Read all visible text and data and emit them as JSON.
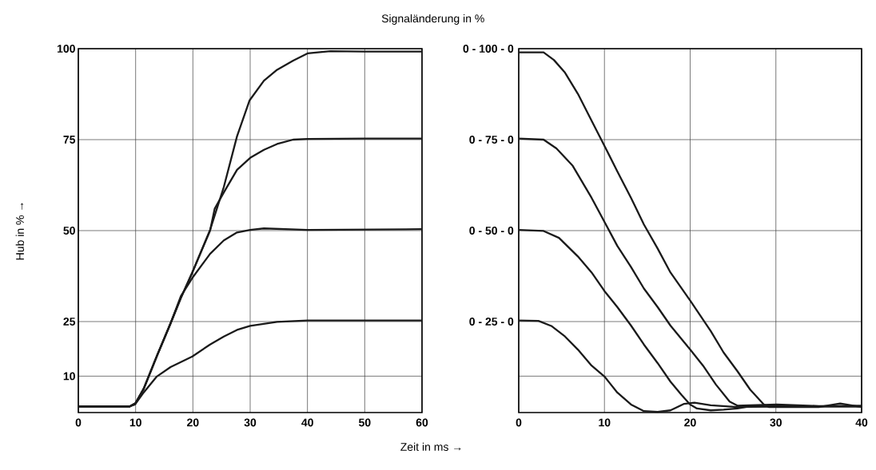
{
  "chart_data": [
    {
      "type": "line",
      "ylabel": "Hub in % →",
      "xlabel": "Zeit in ms →",
      "xlim": [
        0,
        60
      ],
      "ylim": [
        0,
        100
      ],
      "xticks": [
        0,
        10,
        20,
        30,
        40,
        50,
        60
      ],
      "yticks": [
        10,
        25,
        50,
        75,
        100
      ],
      "grid": true,
      "series": [
        {
          "color": "#1a1a1a",
          "x": [
            0,
            5,
            9,
            10,
            11.4,
            13.7,
            16.1,
            17.9,
            19.9,
            23,
            25.4,
            27.7,
            29.9,
            32.4,
            34.7,
            37.5,
            40,
            44,
            50,
            60
          ],
          "values": [
            1.7,
            1.7,
            1.7,
            2.6,
            6.5,
            15.5,
            24.5,
            31.5,
            38.5,
            50.2,
            62,
            75.9,
            85.8,
            91.2,
            94.2,
            96.7,
            98.7,
            99.3,
            99.2,
            99.2
          ]
        },
        {
          "color": "#1a1a1a",
          "x": [
            0,
            5,
            9,
            10,
            11.4,
            13.7,
            16.1,
            17.9,
            19.9,
            23,
            23.8,
            25.4,
            27.7,
            30,
            32.4,
            34.7,
            37.5,
            40,
            50,
            60
          ],
          "values": [
            1.7,
            1.7,
            1.7,
            2.6,
            6.5,
            15.5,
            24.5,
            31.5,
            38.5,
            50,
            56,
            60.5,
            66.7,
            70,
            72.2,
            73.8,
            75,
            75.2,
            75.3,
            75.3
          ]
        },
        {
          "color": "#1a1a1a",
          "x": [
            0,
            5,
            9,
            10,
            11.4,
            13.7,
            16.1,
            17.9,
            19.9,
            23,
            25.4,
            27.7,
            30,
            32.4,
            40,
            50,
            60
          ],
          "values": [
            1.7,
            1.7,
            1.7,
            2.6,
            6.5,
            15.5,
            24.5,
            32,
            37,
            43.6,
            47.3,
            49.5,
            50.2,
            50.6,
            50.2,
            50.3,
            50.4
          ]
        },
        {
          "color": "#1a1a1a",
          "x": [
            0,
            5,
            9,
            9.9,
            11.4,
            13.7,
            16.1,
            19.9,
            23,
            25.4,
            27.7,
            30,
            34.7,
            40,
            50,
            60
          ],
          "values": [
            1.7,
            1.7,
            1.7,
            2.2,
            5.5,
            9.9,
            12.5,
            15.4,
            18.7,
            20.9,
            22.7,
            23.8,
            24.9,
            25.3,
            25.3,
            25.3
          ]
        }
      ]
    },
    {
      "type": "line",
      "title": "Signaländerung in %",
      "xlim": [
        0,
        40
      ],
      "ylim": [
        0,
        100
      ],
      "xticks": [
        0,
        10,
        20,
        30,
        40
      ],
      "yticks": [
        10,
        25,
        50,
        75,
        100
      ],
      "tick_labels": "x",
      "grid": true,
      "annotations": [
        "0 - 25 - 0",
        "0 - 50 - 0",
        "0 - 75 - 0",
        "0 - 100 - 0"
      ],
      "series": [
        {
          "color": "#1a1a1a",
          "x": [
            0,
            2.9,
            4.1,
            5.4,
            6.9,
            8.5,
            10,
            11.5,
            13.1,
            14.6,
            16.2,
            17.7,
            20,
            22.4,
            23.9,
            25.5,
            27,
            28.6,
            29.2,
            32,
            35,
            37.5,
            40
          ],
          "values": [
            99,
            99,
            96.9,
            93.4,
            87.6,
            80.2,
            73.3,
            66.3,
            59,
            51.7,
            45.1,
            38.5,
            30.8,
            22.4,
            16.5,
            11.4,
            6.3,
            2.2,
            1.5,
            1.5,
            1.5,
            2.5,
            1.5
          ]
        },
        {
          "color": "#1a1a1a",
          "x": [
            0,
            2.9,
            4.4,
            6.3,
            8.5,
            10,
            11.5,
            13.1,
            14.6,
            16.2,
            17.7,
            20,
            21.5,
            23,
            24.6,
            25.5,
            27,
            30.1,
            35,
            40
          ],
          "values": [
            75.3,
            75,
            72.6,
            67.8,
            59,
            52.4,
            45.8,
            40,
            34.1,
            29,
            23.9,
            17.3,
            12.9,
            7.7,
            3,
            1.9,
            2,
            2.2,
            1.8,
            1.9
          ]
        },
        {
          "color": "#1a1a1a",
          "x": [
            0,
            2.9,
            4.7,
            6.9,
            8.5,
            10,
            11.5,
            13.1,
            14.6,
            16.2,
            17.7,
            19,
            20,
            20.8,
            22.4,
            23.9,
            25.5,
            27,
            35,
            40
          ],
          "values": [
            50.2,
            49.9,
            48,
            42.9,
            38.5,
            33.4,
            29,
            23.9,
            18.7,
            13.6,
            8.5,
            4.8,
            2.2,
            1.1,
            0.6,
            0.8,
            1.1,
            1.7,
            1.7,
            1.7
          ]
        },
        {
          "color": "#1a1a1a",
          "x": [
            0,
            2.3,
            3.8,
            5.4,
            6.9,
            8.5,
            10,
            11.5,
            13.1,
            14.6,
            16.2,
            17.7,
            19.3,
            20.5,
            22.4,
            25.5,
            30,
            40
          ],
          "values": [
            25.3,
            25.2,
            23.8,
            20.9,
            17.3,
            12.9,
            9.9,
            5.5,
            2.2,
            0.4,
            0.2,
            0.6,
            2.4,
            2.7,
            2,
            1.5,
            1.7,
            1.7
          ]
        }
      ]
    }
  ]
}
